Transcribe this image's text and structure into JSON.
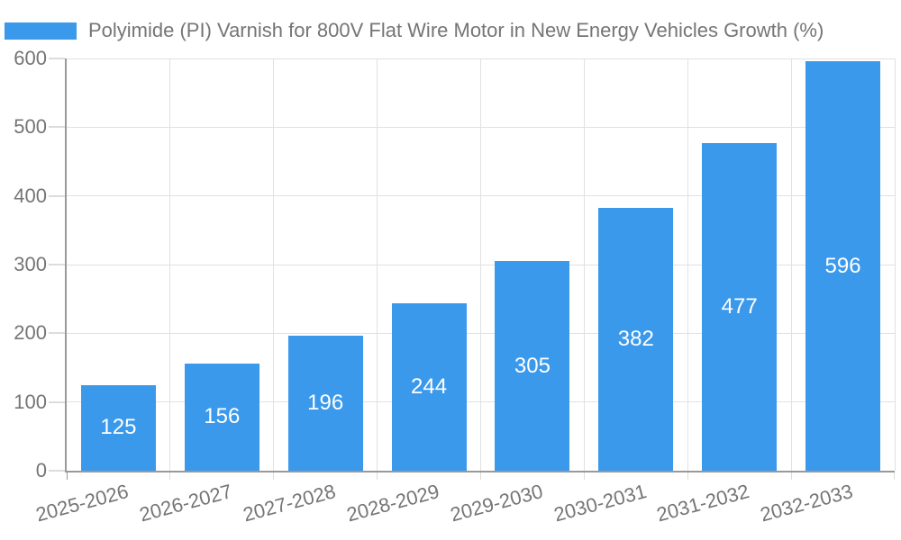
{
  "legend": {
    "label": "Polyimide (PI) Varnish for 800V Flat Wire Motor in New Energy Vehicles Growth (%)",
    "swatch_color": "#3B99EC",
    "position": "top-left"
  },
  "chart_data": {
    "type": "bar",
    "title": "Polyimide (PI) Varnish for 800V Flat Wire Motor in New Energy Vehicles Growth (%)",
    "categories": [
      "2025-2026",
      "2026-2027",
      "2027-2028",
      "2028-2029",
      "2029-2030",
      "2030-2031",
      "2031-2032",
      "2032-2033"
    ],
    "values": [
      125,
      156,
      196,
      244,
      305,
      382,
      477,
      596
    ],
    "series_name": "Polyimide (PI) Varnish for 800V Flat Wire Motor in New Energy Vehicles Growth (%)",
    "xlabel": "",
    "ylabel": "",
    "ylim": [
      0,
      600
    ],
    "yticks": [
      0,
      100,
      200,
      300,
      400,
      500,
      600
    ],
    "grid": true,
    "value_labels": "inside-center",
    "colors": {
      "bar": "#3B99EC",
      "value_label": "#ffffff",
      "axis_line": "#999999",
      "gridline": "#e1e1e1",
      "tick_text": "#757575",
      "background": "#ffffff"
    }
  }
}
